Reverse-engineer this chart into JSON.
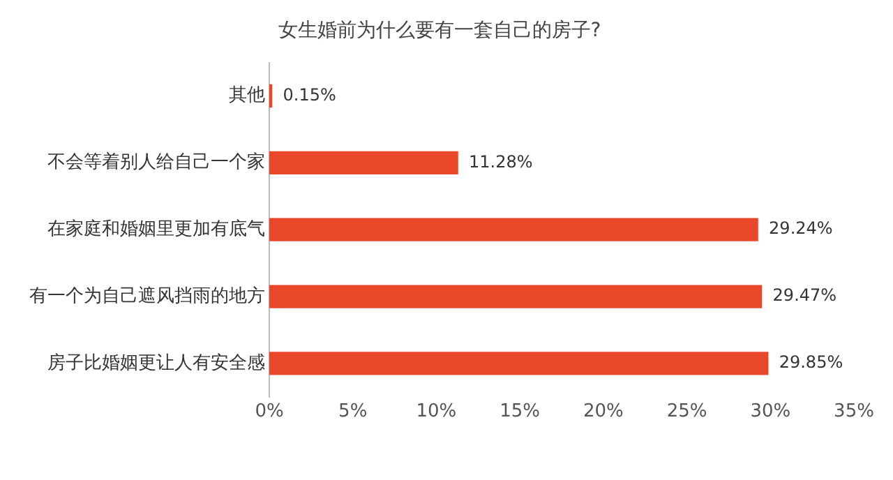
{
  "chart_data": {
    "type": "bar",
    "orientation": "horizontal",
    "title": "女生婚前为什么要有一套自己的房子?",
    "categories": [
      "其他",
      "不会等着别人给自己一个家",
      "在家庭和婚姻里更加有底气",
      "有一个为自己遮风挡雨的地方",
      "房子比婚姻更让人有安全感"
    ],
    "values": [
      0.15,
      11.28,
      29.24,
      29.47,
      29.85
    ],
    "value_labels": [
      "0.15%",
      "11.28%",
      "29.24%",
      "29.47%",
      "29.85%"
    ],
    "color": "#e8472a",
    "xlim": [
      0,
      35
    ],
    "xticks": [
      {
        "value": 0,
        "label": "0%"
      },
      {
        "value": 5,
        "label": "5%"
      },
      {
        "value": 10,
        "label": "10%"
      },
      {
        "value": 15,
        "label": "15%"
      },
      {
        "value": 20,
        "label": "20%"
      },
      {
        "value": 25,
        "label": "25%"
      },
      {
        "value": 30,
        "label": "30%"
      },
      {
        "value": 35,
        "label": "35%"
      }
    ],
    "grid": false,
    "legend": false
  }
}
